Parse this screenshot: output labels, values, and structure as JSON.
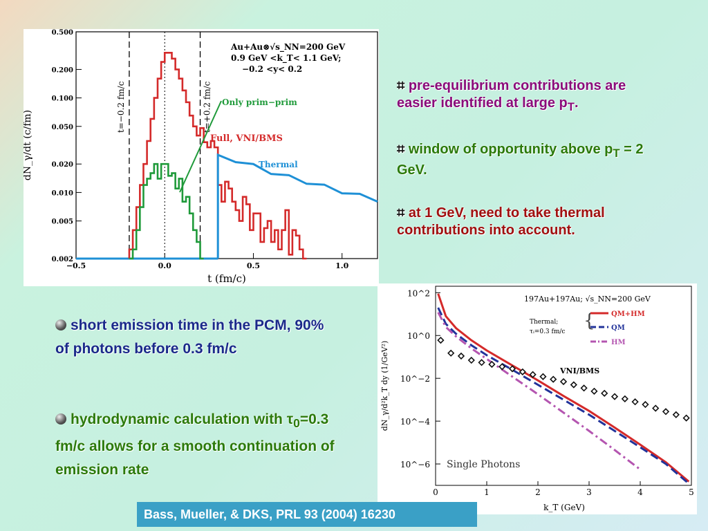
{
  "chart_data": [
    {
      "type": "line",
      "title": "",
      "annotation_lines": [
        "Au+Au⊗√s_NN=200 GeV",
        "0.9 GeV <k_T< 1.1 GeV;",
        "−0.2 <y< 0.2"
      ],
      "xlabel": "t  (fm/c)",
      "ylabel": "dN_γ/dt  (c/fm)",
      "y_scale": "log",
      "xlim": [
        -0.5,
        1.2
      ],
      "ylim": [
        0.002,
        0.5
      ],
      "xticks": [
        "−0.5",
        "0.0",
        "0.5",
        "1.0"
      ],
      "yticks": [
        "0.500",
        "0.200",
        "0.100",
        "0.050",
        "0.020",
        "0.010",
        "0.005",
        "0.002"
      ],
      "vlines": [
        {
          "label": "t=−0.2 fm/c",
          "x": -0.2
        },
        {
          "label": "t=+0.2 fm/c",
          "x": 0.2
        }
      ],
      "series": [
        {
          "name": "Full, VNI/BMS",
          "color": "#d42a2a",
          "x": [
            -0.2,
            -0.18,
            -0.16,
            -0.14,
            -0.12,
            -0.1,
            -0.08,
            -0.06,
            -0.04,
            -0.02,
            0.0,
            0.02,
            0.04,
            0.06,
            0.08,
            0.1,
            0.12,
            0.14,
            0.16,
            0.18,
            0.2,
            0.22,
            0.24,
            0.26,
            0.28,
            0.3,
            0.32,
            0.34,
            0.36,
            0.38,
            0.4,
            0.42,
            0.44,
            0.46,
            0.48,
            0.5,
            0.52,
            0.54,
            0.56,
            0.58,
            0.6,
            0.62,
            0.64,
            0.66,
            0.68,
            0.7,
            0.72,
            0.74,
            0.76,
            0.78
          ],
          "values": [
            0.0025,
            0.004,
            0.007,
            0.012,
            0.02,
            0.035,
            0.06,
            0.1,
            0.16,
            0.24,
            0.3,
            0.3,
            0.26,
            0.2,
            0.16,
            0.12,
            0.09,
            0.065,
            0.05,
            0.04,
            0.048,
            0.034,
            0.03,
            0.035,
            0.03,
            0.012,
            0.008,
            0.013,
            0.011,
            0.008,
            0.0065,
            0.005,
            0.009,
            0.0075,
            0.004,
            0.006,
            0.006,
            0.003,
            0.0042,
            0.005,
            0.003,
            0.004,
            0.0025,
            0.004,
            0.0065,
            0.0022,
            0.004,
            0.0035,
            0.0025,
            0.002
          ]
        },
        {
          "name": "Only prim−prim",
          "color": "#1f9a3a",
          "x": [
            -0.2,
            -0.18,
            -0.16,
            -0.14,
            -0.12,
            -0.1,
            -0.08,
            -0.06,
            -0.04,
            -0.02,
            0.0,
            0.02,
            0.04,
            0.06,
            0.08,
            0.1,
            0.12,
            0.14,
            0.16,
            0.18,
            0.2
          ],
          "values": [
            0.002,
            0.0025,
            0.004,
            0.007,
            0.012,
            0.014,
            0.016,
            0.02,
            0.014,
            0.02,
            0.02,
            0.015,
            0.016,
            0.011,
            0.014,
            0.008,
            0.009,
            0.006,
            0.004,
            0.003,
            0.002
          ]
        },
        {
          "name": "Thermal",
          "color": "#1e90d6",
          "x": [
            0.3,
            0.4,
            0.5,
            0.6,
            0.7,
            0.8,
            0.9,
            1.0,
            1.1,
            1.2
          ],
          "values": [
            0.025,
            0.022,
            0.019,
            0.0165,
            0.0145,
            0.013,
            0.0115,
            0.0103,
            0.0092,
            0.008
          ]
        }
      ]
    },
    {
      "type": "line",
      "title": "",
      "annotation_header": "197Au+197Au; √s_NN=200 GeV",
      "thermal_note": [
        "Thermal;",
        "τᵢ=0.3 fm/c"
      ],
      "bottom_label": "Single Photons",
      "xlabel": "k_T  (GeV)",
      "ylabel": "dN_γ/d²k_T dy  (1/GeV²)",
      "y_scale": "log",
      "xlim": [
        0,
        5
      ],
      "ylim": [
        1e-07,
        200
      ],
      "xticks": [
        "0",
        "1",
        "2",
        "3",
        "4",
        "5"
      ],
      "yticks": [
        "10^2",
        "10^0",
        "10^−2",
        "10^−4",
        "10^−6"
      ],
      "series": [
        {
          "name": "QM+HM",
          "color": "#d42a2a",
          "style": "solid",
          "x": [
            0.05,
            0.2,
            0.4,
            0.7,
            1.0,
            1.5,
            2.0,
            2.5,
            3.0,
            3.5,
            4.0,
            4.5,
            4.95
          ],
          "values": [
            90,
            8,
            2.2,
            0.6,
            0.2,
            0.04,
            0.008,
            0.0015,
            0.0003,
            5e-05,
            8e-06,
            1.2e-06,
            1.5e-07
          ]
        },
        {
          "name": "QM",
          "color": "#22339a",
          "style": "dashed",
          "x": [
            0.05,
            0.2,
            0.4,
            0.7,
            1.0,
            1.5,
            2.0,
            2.5,
            3.0,
            3.5,
            4.0,
            4.5,
            4.95
          ],
          "values": [
            20,
            3.5,
            1.2,
            0.35,
            0.12,
            0.025,
            0.005,
            0.001,
            0.0002,
            3.5e-05,
            6e-06,
            1e-06,
            1.2e-07
          ]
        },
        {
          "name": "HM",
          "color": "#b455b0",
          "style": "dash-dot",
          "x": [
            0.05,
            0.2,
            0.4,
            0.7,
            1.0,
            1.5,
            2.0,
            2.5,
            3.0,
            3.5,
            4.0
          ],
          "values": [
            12,
            2.5,
            0.9,
            0.25,
            0.08,
            0.012,
            0.0018,
            0.00025,
            3.5e-05,
            4.5e-06,
            5.5e-07
          ]
        },
        {
          "name": "VNI/BMS",
          "color": "#111111",
          "style": "diamonds",
          "x": [
            0.1,
            0.3,
            0.5,
            0.7,
            0.9,
            1.1,
            1.3,
            1.5,
            1.7,
            1.9,
            2.1,
            2.3,
            2.5,
            2.7,
            2.9,
            3.1,
            3.3,
            3.5,
            3.7,
            3.9,
            4.1,
            4.3,
            4.5,
            4.7,
            4.9
          ],
          "values": [
            0.6,
            0.15,
            0.11,
            0.07,
            0.055,
            0.045,
            0.035,
            0.028,
            0.02,
            0.015,
            0.012,
            0.009,
            0.007,
            0.005,
            0.0035,
            0.0025,
            0.002,
            0.0014,
            0.0011,
            0.0008,
            0.0006,
            0.0004,
            0.00028,
            0.0002,
            0.00014
          ]
        }
      ]
    }
  ],
  "bullets": {
    "b1_glyph": "⌗",
    "b1_a": "pre-equilibrium contributions are easier identified at large p",
    "b1_sub": "T",
    "b1_end": ".",
    "b2_glyph": "⌗",
    "b2_a": "window of opportunity above p",
    "b2_sub": "T",
    "b2_end": " = 2 GeV.",
    "b3_glyph": "⌗",
    "b3_a": "at 1 GeV, need to take thermal contributions into account.",
    "b4": "short emission time in the PCM, 90% of photons before 0.3 fm/c",
    "b5_a": "hydrodynamic calculation with τ",
    "b5_sub": "0",
    "b5_end": "=0.3 fm/c allows for a smooth continuation of emission rate"
  },
  "citation": "Bass, Mueller, & DKS, PRL 93 (2004) 16230"
}
